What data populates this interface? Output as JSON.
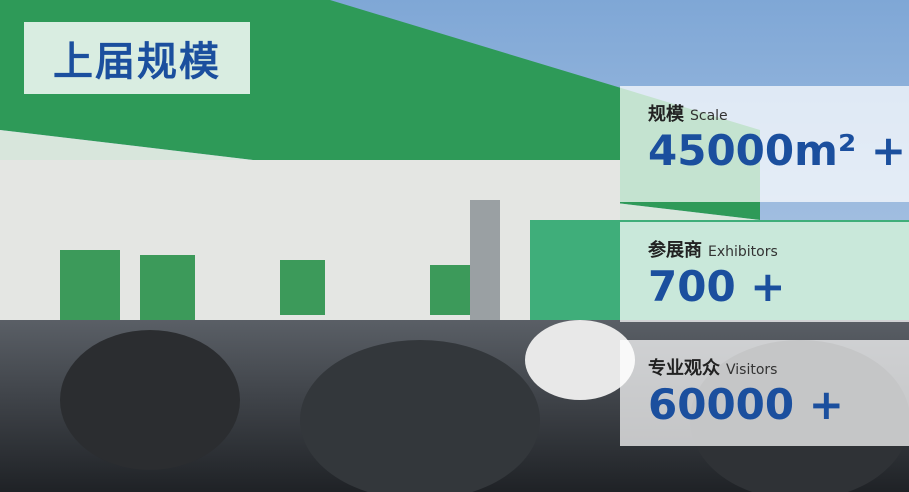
{
  "title": "上届规模",
  "stats": [
    {
      "label": "规模",
      "sublabel": "Scale",
      "value": "45000m² +"
    },
    {
      "label": "参展商",
      "sublabel": "Exhibitors",
      "value": "700 +"
    },
    {
      "label": "专业观众",
      "sublabel": "Visitors",
      "value": "60000 +"
    }
  ]
}
